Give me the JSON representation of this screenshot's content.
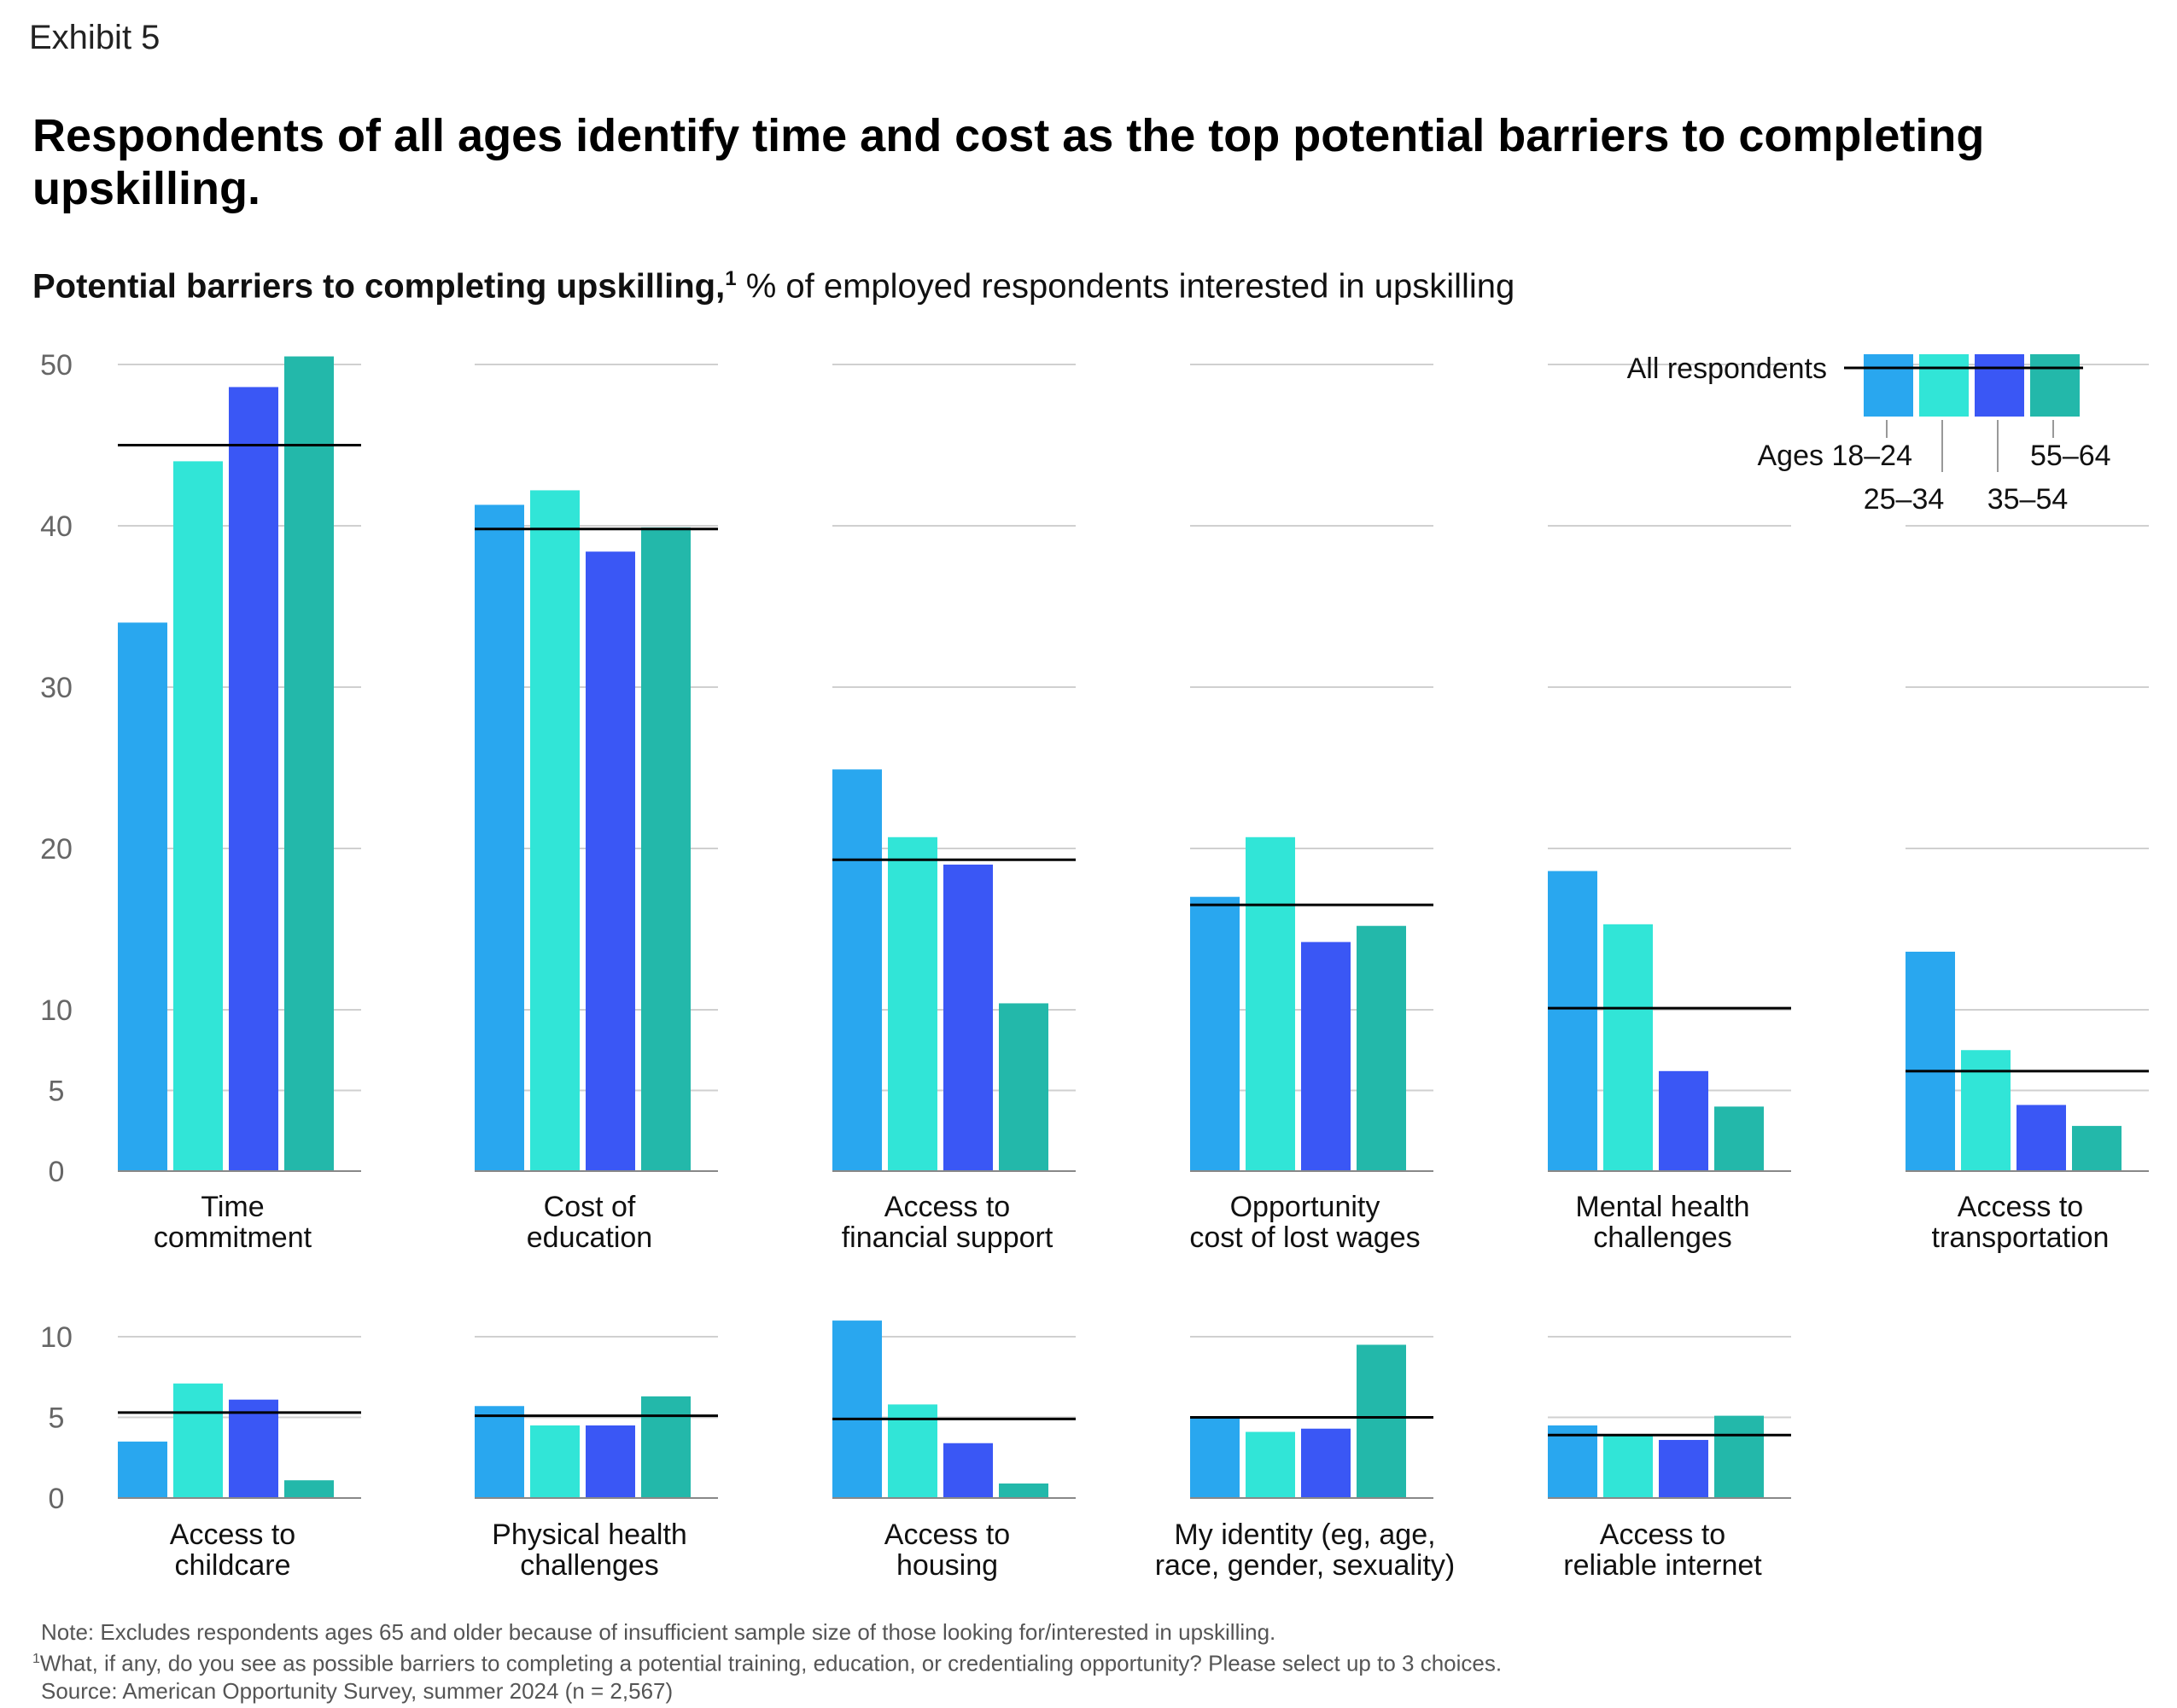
{
  "exhibit_label": "Exhibit 5",
  "headline": "Respondents of all ages identify time and cost as the top potential barriers to completing upskilling.",
  "subtitle_bold": "Potential barriers to completing upskilling,",
  "subtitle_sup": "1",
  "subtitle_rest": " % of employed respondents interested in upskilling",
  "notes": {
    "note": "Note: Excludes respondents ages 65 and older because of insufficient sample size of those looking for/interested in upskilling.",
    "footnote_mark": "1",
    "footnote": "What, if any, do you see as possible barriers to completing a potential training, education, or credentialing opportunity? Please select up to 3 choices.",
    "source": "Source: American Opportunity Survey, summer 2024 (n = 2,567)"
  },
  "colors": {
    "ages_18_24": "#29A7EF",
    "ages_25_34": "#31E5D7",
    "ages_35_54": "#3A57F5",
    "ages_55_64": "#23B8AA",
    "all_line": "#000000",
    "grid": "#D0D0D0",
    "axis_text": "#666666"
  },
  "chart_data": {
    "type": "bar",
    "title": "Potential barriers to completing upskilling, % of employed respondents interested in upskilling",
    "ylabel": "% of employed respondents interested in upskilling",
    "legend": {
      "all_label": "All respondents",
      "series_labels": [
        "Ages 18–24",
        "25–34",
        "35–54",
        "55–64"
      ],
      "placement": "top-right"
    },
    "series": [
      {
        "name": "Ages 18–24",
        "color": "#29A7EF"
      },
      {
        "name": "25–34",
        "color": "#31E5D7"
      },
      {
        "name": "35–54",
        "color": "#3A57F5"
      },
      {
        "name": "55–64",
        "color": "#23B8AA"
      }
    ],
    "rows": [
      {
        "ylim": [
          0,
          50
        ],
        "yticks": [
          0,
          5,
          10,
          20,
          30,
          40,
          50
        ],
        "panels": [
          {
            "label": [
              "Time",
              "commitment"
            ],
            "values": [
              34,
              44,
              48.6,
              50.5
            ],
            "all": 45
          },
          {
            "label": [
              "Cost of",
              "education"
            ],
            "values": [
              41.3,
              42.2,
              38.4,
              39.9
            ],
            "all": 39.8
          },
          {
            "label": [
              "Access to",
              "financial support"
            ],
            "values": [
              24.9,
              20.7,
              19,
              10.4
            ],
            "all": 19.3
          },
          {
            "label": [
              "Opportunity",
              "cost of lost wages"
            ],
            "values": [
              17,
              20.7,
              14.2,
              15.2
            ],
            "all": 16.5
          },
          {
            "label": [
              "Mental health",
              "challenges"
            ],
            "values": [
              18.6,
              15.3,
              6.2,
              4
            ],
            "all": 10.1
          },
          {
            "label": [
              "Access to",
              "transportation"
            ],
            "values": [
              13.6,
              7.5,
              4.1,
              2.8
            ],
            "all": 6.2
          }
        ]
      },
      {
        "ylim": [
          0,
          10
        ],
        "yticks": [
          0,
          5,
          10
        ],
        "panels": [
          {
            "label": [
              "Access to",
              "childcare"
            ],
            "values": [
              3.5,
              7.1,
              6.1,
              1.1
            ],
            "all": 5.3
          },
          {
            "label": [
              "Physical health",
              "challenges"
            ],
            "values": [
              5.7,
              4.5,
              4.5,
              6.3
            ],
            "all": 5.1
          },
          {
            "label": [
              "Access to",
              "housing"
            ],
            "values": [
              11,
              5.8,
              3.4,
              0.9
            ],
            "all": 4.9
          },
          {
            "label": [
              "My identity (eg, age,",
              "race, gender, sexuality)"
            ],
            "values": [
              5,
              4.1,
              4.3,
              9.5
            ],
            "all": 5
          },
          {
            "label": [
              "Access to",
              "reliable internet"
            ],
            "values": [
              4.5,
              3.9,
              3.6,
              5.1
            ],
            "all": 3.9
          }
        ]
      }
    ]
  }
}
